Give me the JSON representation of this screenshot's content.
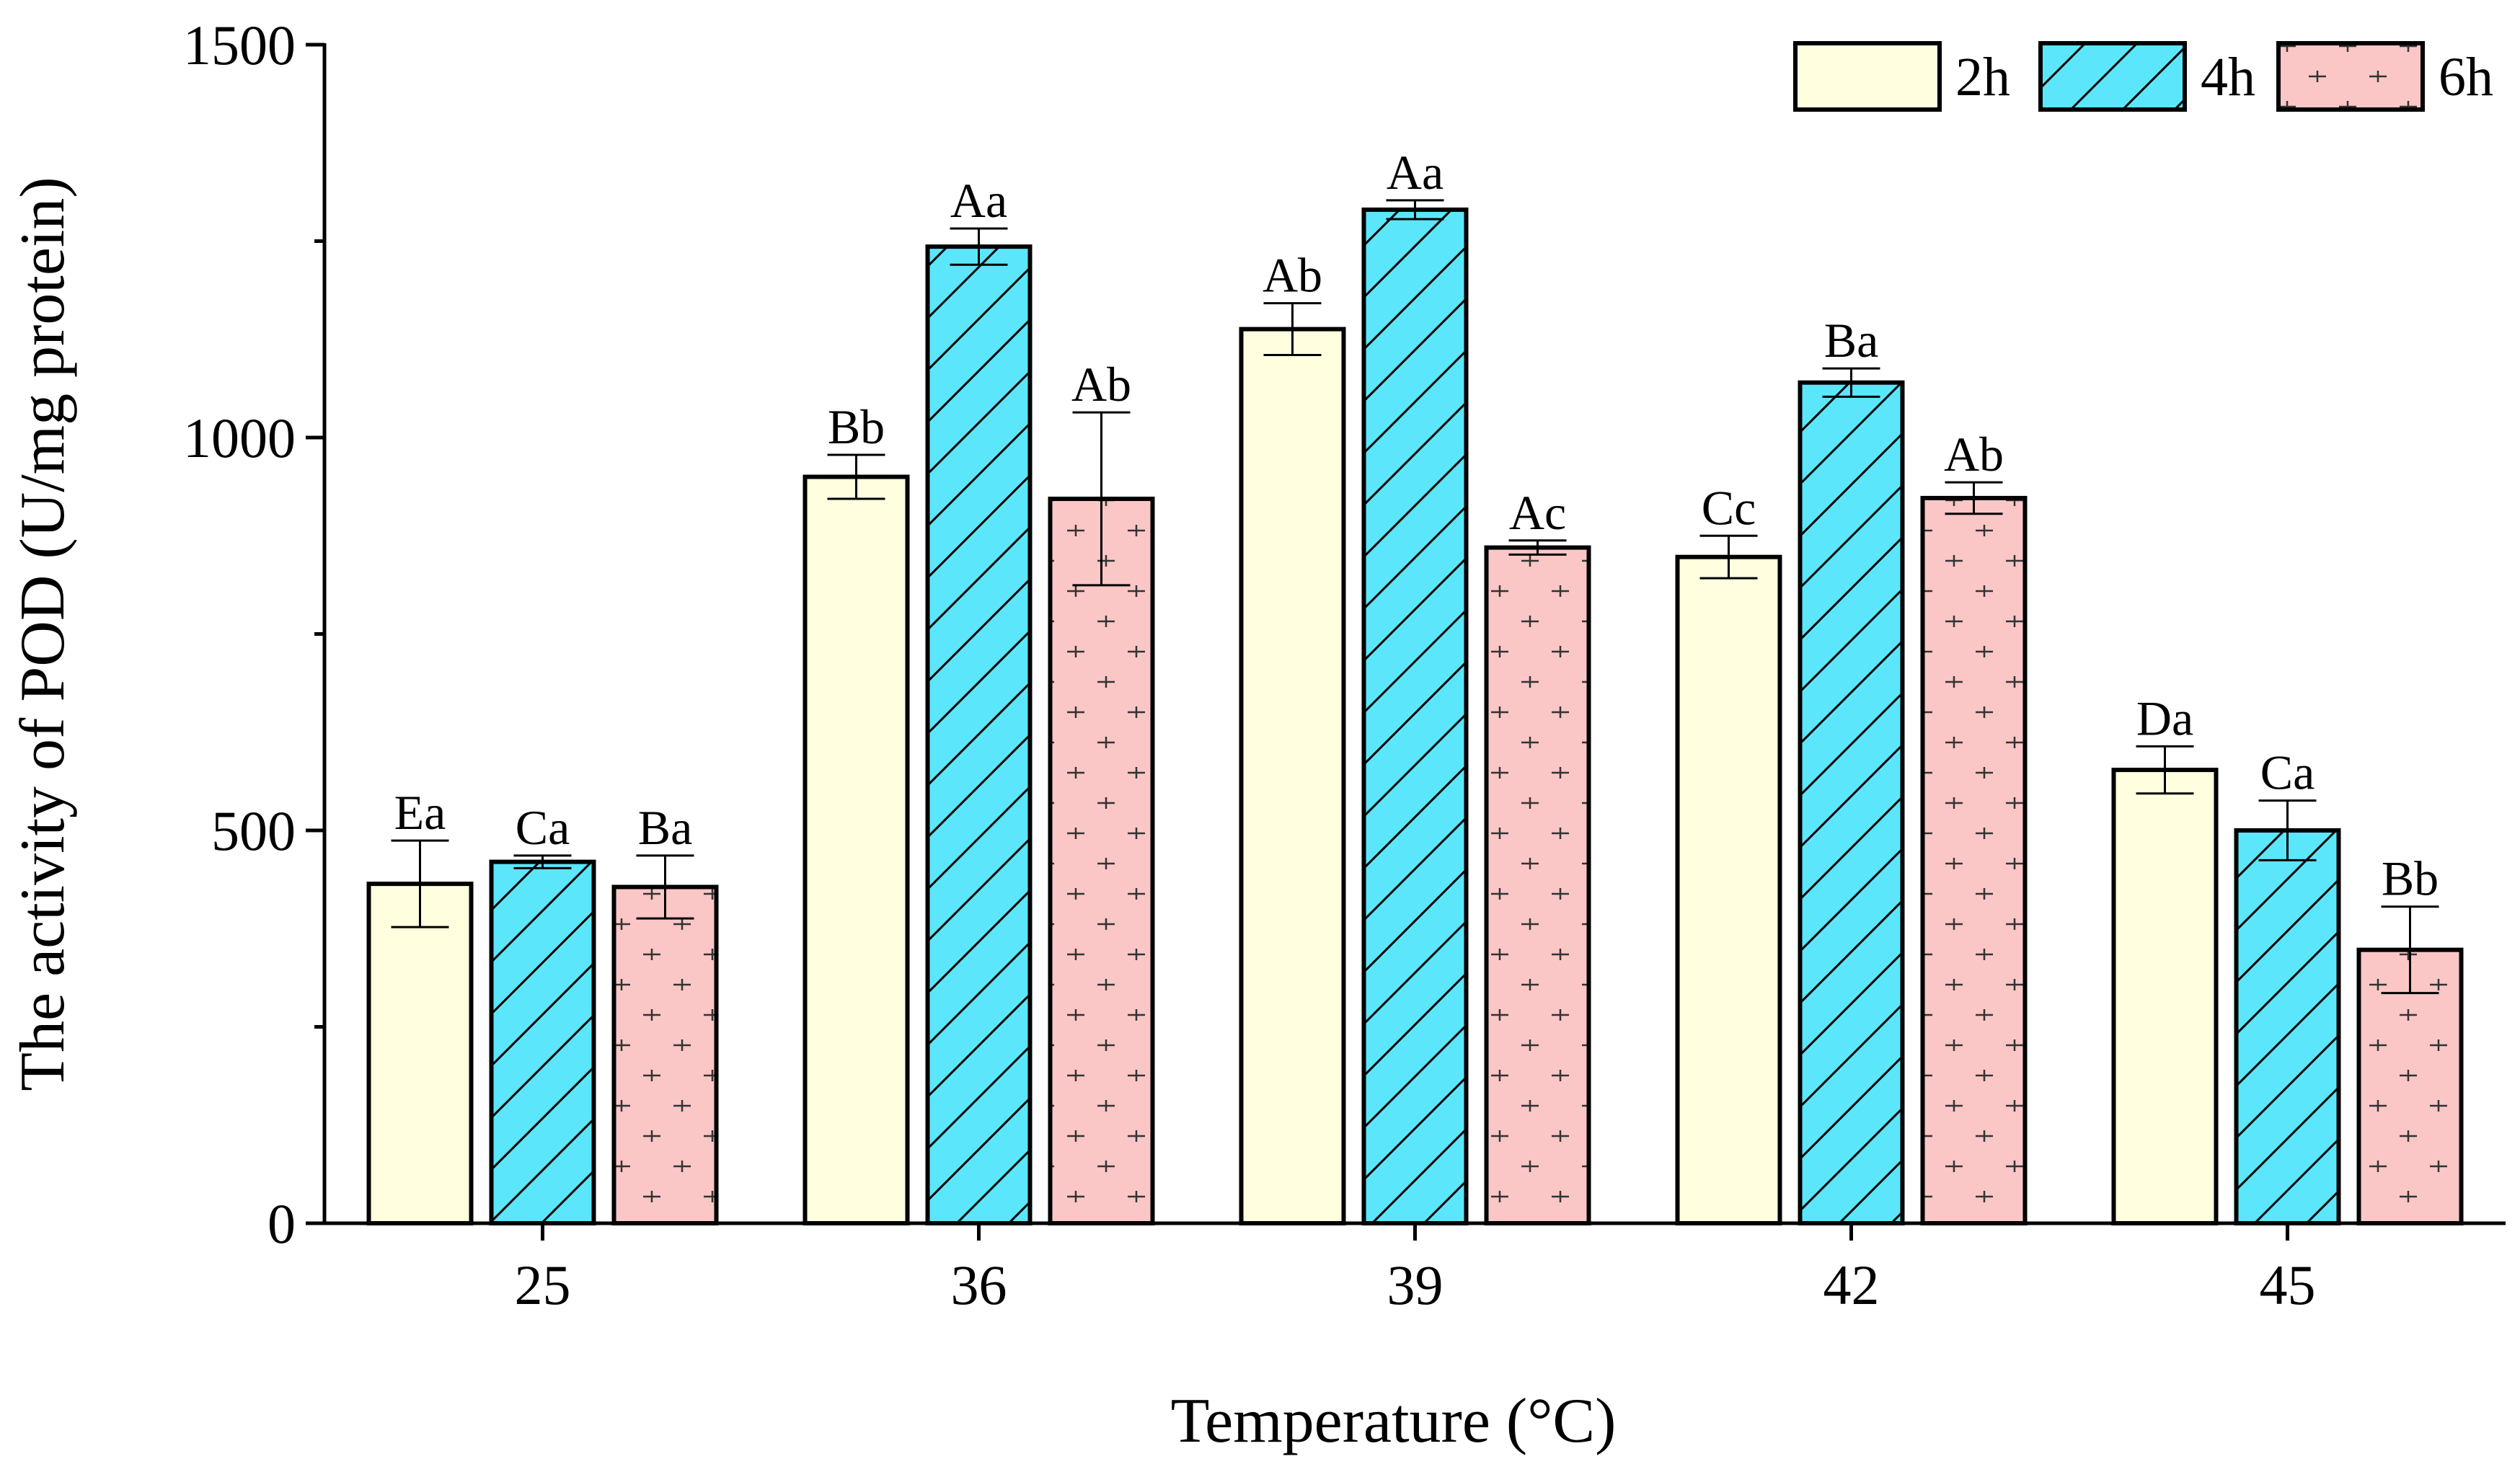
{
  "chart_data": {
    "type": "bar",
    "title": "",
    "xlabel": "Temperature (°C)",
    "ylabel": "The activity of POD (U/mg protein)",
    "categories": [
      "25",
      "36",
      "39",
      "42",
      "45"
    ],
    "ylim": [
      0,
      1500
    ],
    "yticks": [
      0,
      500,
      1000,
      1500
    ],
    "yticks_labels": [
      "0",
      "500",
      "1000",
      "1500"
    ],
    "legend_position": "top-right",
    "series": [
      {
        "name": "2h",
        "pattern": "plain",
        "color": "#FFFFE0",
        "values": [
          432,
          950,
          1138,
          848,
          577
        ],
        "errors": [
          55,
          28,
          33,
          27,
          30
        ],
        "labels": [
          "Ea",
          "Bb",
          "Ab",
          "Cc",
          "Da"
        ]
      },
      {
        "name": "4h",
        "pattern": "diagonal-hatch",
        "color": "#5CE6FC",
        "values": [
          460,
          1243,
          1290,
          1070,
          500
        ],
        "errors": [
          8,
          23,
          12,
          18,
          38
        ],
        "labels": [
          "Ca",
          "Aa",
          "Aa",
          "Ba",
          "Ca"
        ]
      },
      {
        "name": "6h",
        "pattern": "plus-marks",
        "color": "#FAC6C6",
        "values": [
          428,
          922,
          860,
          923,
          348
        ],
        "errors": [
          40,
          110,
          9,
          20,
          55
        ],
        "labels": [
          "Ba",
          "Ab",
          "Ac",
          "Ab",
          "Bb"
        ]
      }
    ]
  },
  "colors": {
    "axis": "#000000",
    "bar_stroke": "#000000"
  }
}
